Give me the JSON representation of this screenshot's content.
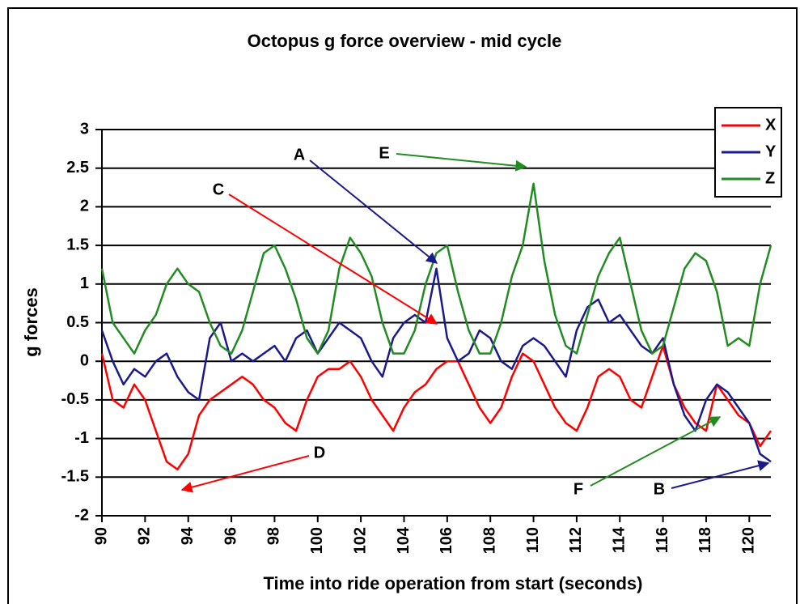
{
  "chart_data": {
    "type": "line",
    "title": "Octopus g force overview - mid cycle",
    "x_label": "Time into ride operation from start (seconds)",
    "y_label": "g forces",
    "x": [
      90,
      90.5,
      91,
      91.5,
      92,
      92.5,
      93,
      93.5,
      94,
      94.5,
      95,
      95.5,
      96,
      96.5,
      97,
      97.5,
      98,
      98.5,
      99,
      99.5,
      100,
      100.5,
      101,
      101.5,
      102,
      102.5,
      103,
      103.5,
      104,
      104.5,
      105,
      105.5,
      106,
      106.5,
      107,
      107.5,
      108,
      108.5,
      109,
      109.5,
      110,
      110.5,
      111,
      111.5,
      112,
      112.5,
      113,
      113.5,
      114,
      114.5,
      115,
      115.5,
      116,
      116.5,
      117,
      117.5,
      118,
      118.5,
      119,
      119.5,
      120,
      120.5,
      121
    ],
    "series": [
      {
        "name": "X",
        "color": "#ff0000",
        "values": [
          0.1,
          -0.5,
          -0.6,
          -0.3,
          -0.5,
          -0.9,
          -1.3,
          -1.4,
          -1.2,
          -0.7,
          -0.5,
          -0.4,
          -0.3,
          -0.2,
          -0.3,
          -0.5,
          -0.6,
          -0.8,
          -0.9,
          -0.5,
          -0.2,
          -0.1,
          -0.1,
          0,
          -0.2,
          -0.5,
          -0.7,
          -0.9,
          -0.6,
          -0.4,
          -0.3,
          -0.1,
          0,
          0,
          -0.3,
          -0.6,
          -0.8,
          -0.6,
          -0.2,
          0.1,
          0,
          -0.3,
          -0.6,
          -0.8,
          -0.9,
          -0.6,
          -0.2,
          -0.1,
          -0.2,
          -0.5,
          -0.6,
          -0.2,
          0.2,
          -0.3,
          -0.6,
          -0.8,
          -0.9,
          -0.3,
          -0.5,
          -0.7,
          -0.8,
          -1.1,
          -0.9
        ]
      },
      {
        "name": "Y",
        "color": "#1a1a8c",
        "values": [
          0.4,
          0,
          -0.3,
          -0.1,
          -0.2,
          0,
          0.1,
          -0.2,
          -0.4,
          -0.5,
          0.3,
          0.5,
          0,
          0.1,
          0,
          0.1,
          0.2,
          0,
          0.3,
          0.4,
          0.1,
          0.3,
          0.5,
          0.4,
          0.3,
          0,
          -0.2,
          0.3,
          0.5,
          0.6,
          0.5,
          1.2,
          0.3,
          0,
          0.1,
          0.4,
          0.3,
          0,
          -0.1,
          0.2,
          0.3,
          0.2,
          0,
          -0.2,
          0.4,
          0.7,
          0.8,
          0.5,
          0.6,
          0.4,
          0.2,
          0.1,
          0.3,
          -0.3,
          -0.7,
          -0.9,
          -0.5,
          -0.3,
          -0.4,
          -0.6,
          -0.8,
          -1.2,
          -1.3
        ]
      },
      {
        "name": "Z",
        "color": "#228b22",
        "values": [
          1.2,
          0.5,
          0.3,
          0.1,
          0.4,
          0.6,
          1.0,
          1.2,
          1.0,
          0.9,
          0.5,
          0.2,
          0.1,
          0.4,
          0.9,
          1.4,
          1.5,
          1.2,
          0.8,
          0.3,
          0.1,
          0.4,
          1.2,
          1.6,
          1.4,
          1.1,
          0.5,
          0.1,
          0.1,
          0.4,
          1.0,
          1.4,
          1.5,
          0.9,
          0.4,
          0.1,
          0.1,
          0.5,
          1.1,
          1.5,
          2.3,
          1.3,
          0.6,
          0.2,
          0.1,
          0.6,
          1.1,
          1.4,
          1.6,
          1.0,
          0.4,
          0.1,
          0.2,
          0.7,
          1.2,
          1.4,
          1.3,
          0.9,
          0.2,
          0.3,
          0.2,
          1.0,
          1.5
        ]
      }
    ],
    "xlim": [
      90,
      121
    ],
    "xticks": [
      90,
      92,
      94,
      96,
      98,
      100,
      102,
      104,
      106,
      108,
      110,
      112,
      114,
      116,
      118,
      120
    ],
    "ylim": [
      -2,
      3
    ],
    "yticks": [
      -2,
      -1.5,
      -1,
      -0.5,
      0,
      0.5,
      1,
      1.5,
      2,
      2.5,
      3
    ],
    "grid": true,
    "legend": "top-right",
    "annotations": [
      {
        "text": "A",
        "color": "#1a1a8c"
      },
      {
        "text": "E",
        "color": "#228b22"
      },
      {
        "text": "C",
        "color": "#ff0000"
      },
      {
        "text": "D",
        "color": "#ff0000"
      },
      {
        "text": "F",
        "color": "#228b22"
      },
      {
        "text": "B",
        "color": "#1a1a8c"
      }
    ]
  }
}
